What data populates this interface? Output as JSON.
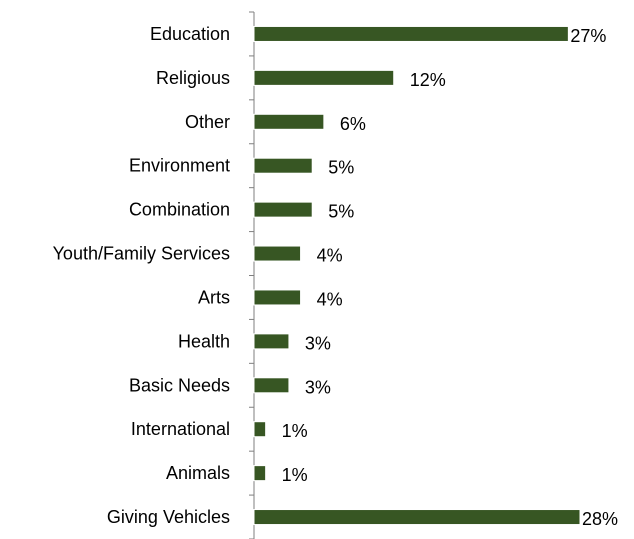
{
  "chart_data": {
    "type": "bar",
    "orientation": "horizontal",
    "categories": [
      "Education",
      "Religious",
      "Other",
      "Environment",
      "Combination",
      "Youth/Family Services",
      "Arts",
      "Health",
      "Basic Needs",
      "International",
      "Animals",
      "Giving Vehicles"
    ],
    "values": [
      27,
      12,
      6,
      5,
      5,
      4,
      4,
      3,
      3,
      1,
      1,
      28
    ],
    "value_labels": [
      "27%",
      "12%",
      "6%",
      "5%",
      "5%",
      "4%",
      "4%",
      "3%",
      "3%",
      "1%",
      "1%",
      "28%"
    ],
    "unit": "%",
    "xlim": [
      0,
      28
    ],
    "grid": false,
    "legend": "none",
    "bar_color": "#375623",
    "axis_color": "#7f7f7f"
  }
}
